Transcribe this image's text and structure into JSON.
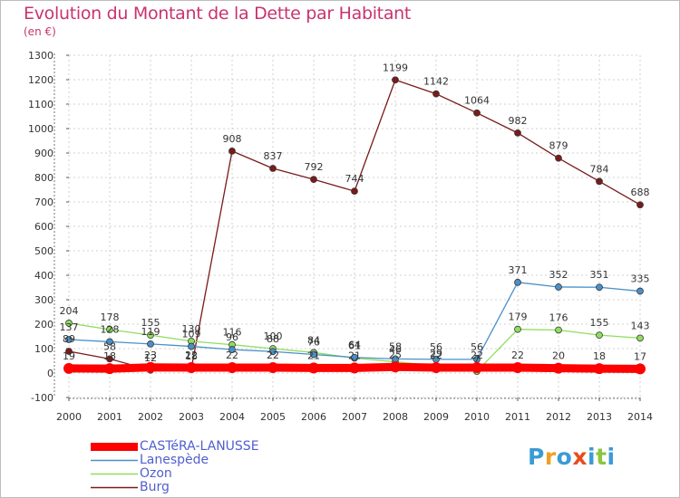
{
  "header": {
    "title": "Evolution du Montant de la Dette par Habitant",
    "unit": "(en €)"
  },
  "logo": {
    "text": "Proxiti",
    "colors": [
      "#3a9bd5",
      "#f0a020",
      "#3a9bd5",
      "#e84d1c",
      "#3a9bd5",
      "#8cc63f",
      "#3a9bd5"
    ]
  },
  "chart_data": {
    "type": "line",
    "title": "Evolution du Montant de la Dette par Habitant",
    "ylabel": "(en €)",
    "xlabel": "",
    "ylim": [
      -100,
      1300
    ],
    "yticks": [
      -100,
      0,
      100,
      200,
      300,
      400,
      500,
      600,
      700,
      800,
      900,
      1000,
      1100,
      1200,
      1300
    ],
    "grid": true,
    "legend_position": "bottom-left",
    "x": [
      "2000",
      "2001",
      "2002",
      "2003",
      "2004",
      "2005",
      "2006",
      "2007",
      "2008",
      "2009",
      "2010",
      "2011",
      "2012",
      "2013",
      "2014"
    ],
    "series": [
      {
        "name": "CASTéRA-LANUSSE",
        "color": "#ff0000",
        "values": [
          19,
          18,
          23,
          22,
          22,
          22,
          21,
          21,
          25,
          22,
          22,
          22,
          20,
          18,
          17
        ]
      },
      {
        "name": "Lanespède",
        "color": "#4a90c8",
        "values": [
          137,
          128,
          119,
          109,
          96,
          88,
          76,
          64,
          58,
          56,
          56,
          371,
          352,
          351,
          335
        ]
      },
      {
        "name": "Ozon",
        "color": "#8ede5e",
        "values": [
          204,
          178,
          155,
          130,
          116,
          100,
          84,
          61,
          46,
          29,
          7,
          179,
          176,
          155,
          143
        ]
      },
      {
        "name": "Burg",
        "color": "#7a1a1a",
        "values": [
          89,
          58,
          12,
          18,
          908,
          837,
          792,
          744,
          1199,
          1142,
          1064,
          982,
          879,
          784,
          688
        ]
      }
    ]
  }
}
